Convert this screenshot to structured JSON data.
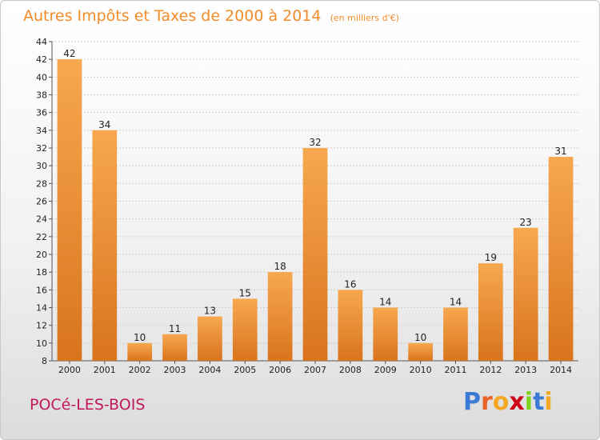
{
  "header": {
    "title": "Autres Impôts et Taxes de 2000 à 2014",
    "subtitle": "(en milliers d'€)"
  },
  "footer": {
    "commune": "POCé-LES-BOIS",
    "logo_text": "Proxiti",
    "logo_colors": [
      "#3a7bd5",
      "#e8632b",
      "#f5a623",
      "#d0021b",
      "#7ed321",
      "#3a7bd5",
      "#f5a623"
    ]
  },
  "colors": {
    "bar_light": "#f7a84f",
    "bar_dark": "#d9741e",
    "grid": "#cfcfcf",
    "title": "#f28c28",
    "commune": "#c2185b"
  },
  "chart_data": {
    "type": "bar",
    "categories": [
      "2000",
      "2001",
      "2002",
      "2003",
      "2004",
      "2005",
      "2006",
      "2007",
      "2008",
      "2009",
      "2010",
      "2011",
      "2012",
      "2013",
      "2014"
    ],
    "values": [
      42,
      34,
      10,
      11,
      13,
      15,
      18,
      32,
      16,
      14,
      10,
      14,
      19,
      23,
      31
    ],
    "ylim": [
      8,
      44
    ],
    "yticks": [
      8,
      10,
      12,
      14,
      16,
      18,
      20,
      22,
      24,
      26,
      28,
      30,
      32,
      34,
      36,
      38,
      40,
      42,
      44
    ],
    "grid": true,
    "title": "Autres Impôts et Taxes de 2000 à 2014",
    "xlabel": "",
    "ylabel": ""
  }
}
